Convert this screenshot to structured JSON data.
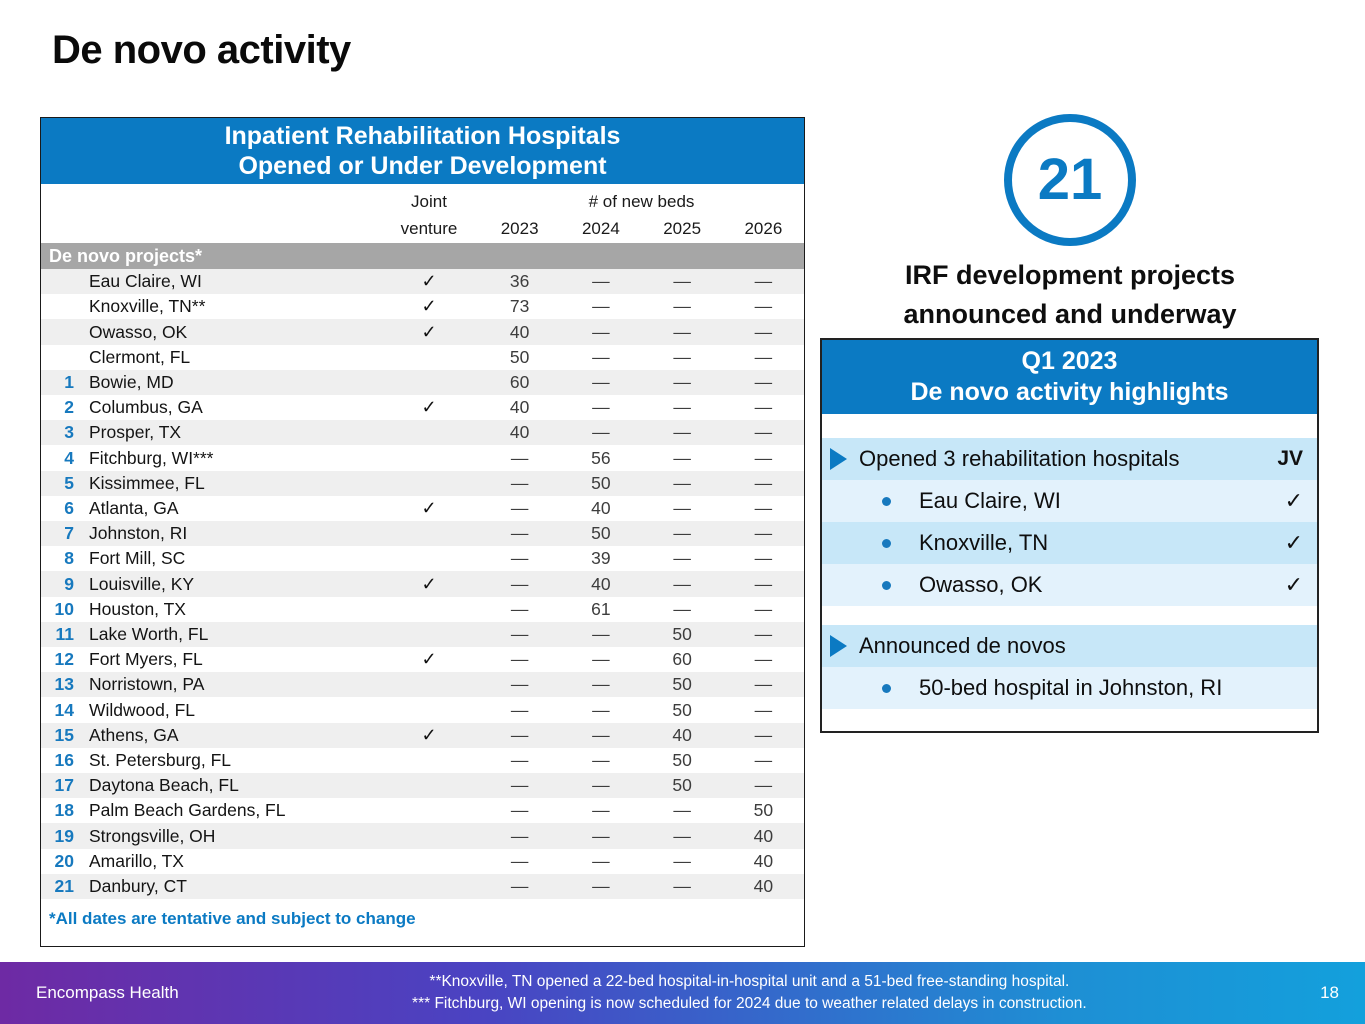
{
  "slide": {
    "title": "De novo activity"
  },
  "colors": {
    "header_blue": "#0b7ac3",
    "number_blue": "#1779be",
    "row_stripe_gray": "#efefef",
    "section_gray": "#a6a6a6",
    "highlight_blue_dark": "#c7e7f8",
    "highlight_blue_light": "#e3f2fc",
    "footer_gradient_left_purple": "#6e2aa4",
    "footer_gradient_right_cyan": "#13a0dc"
  },
  "glyphs": {
    "check": "✓",
    "dash": "—"
  },
  "table": {
    "title_line1": "Inpatient Rehabilitation Hospitals",
    "title_line2": "Opened or Under Development",
    "col_headers": {
      "joint_line1": "Joint",
      "joint_line2": "venture",
      "beds_group": "# of new beds",
      "years": [
        "2023",
        "2024",
        "2025",
        "2026"
      ]
    },
    "section_label": "De novo projects*",
    "rows": [
      {
        "num": "",
        "city": "Eau Claire, WI",
        "jv": true,
        "beds": [
          "36",
          "—",
          "—",
          "—"
        ]
      },
      {
        "num": "",
        "city": "Knoxville, TN**",
        "jv": true,
        "beds": [
          "73",
          "—",
          "—",
          "—"
        ]
      },
      {
        "num": "",
        "city": "Owasso, OK",
        "jv": true,
        "beds": [
          "40",
          "—",
          "—",
          "—"
        ]
      },
      {
        "num": "",
        "city": "Clermont, FL",
        "jv": false,
        "beds": [
          "50",
          "—",
          "—",
          "—"
        ]
      },
      {
        "num": "1",
        "city": "Bowie, MD",
        "jv": false,
        "beds": [
          "60",
          "—",
          "—",
          "—"
        ]
      },
      {
        "num": "2",
        "city": "Columbus, GA",
        "jv": true,
        "beds": [
          "40",
          "—",
          "—",
          "—"
        ]
      },
      {
        "num": "3",
        "city": "Prosper, TX",
        "jv": false,
        "beds": [
          "40",
          "—",
          "—",
          "—"
        ]
      },
      {
        "num": "4",
        "city": "Fitchburg, WI***",
        "jv": false,
        "beds": [
          "—",
          "56",
          "—",
          "—"
        ]
      },
      {
        "num": "5",
        "city": "Kissimmee, FL",
        "jv": false,
        "beds": [
          "—",
          "50",
          "—",
          "—"
        ]
      },
      {
        "num": "6",
        "city": "Atlanta, GA",
        "jv": true,
        "beds": [
          "—",
          "40",
          "—",
          "—"
        ]
      },
      {
        "num": "7",
        "city": "Johnston, RI",
        "jv": false,
        "beds": [
          "—",
          "50",
          "—",
          "—"
        ]
      },
      {
        "num": "8",
        "city": "Fort Mill, SC",
        "jv": false,
        "beds": [
          "—",
          "39",
          "—",
          "—"
        ]
      },
      {
        "num": "9",
        "city": "Louisville, KY",
        "jv": true,
        "beds": [
          "—",
          "40",
          "—",
          "—"
        ]
      },
      {
        "num": "10",
        "city": "Houston, TX",
        "jv": false,
        "beds": [
          "—",
          "61",
          "—",
          "—"
        ]
      },
      {
        "num": "11",
        "city": "Lake Worth, FL",
        "jv": false,
        "beds": [
          "—",
          "—",
          "50",
          "—"
        ]
      },
      {
        "num": "12",
        "city": "Fort Myers, FL",
        "jv": true,
        "beds": [
          "—",
          "—",
          "60",
          "—"
        ]
      },
      {
        "num": "13",
        "city": "Norristown, PA",
        "jv": false,
        "beds": [
          "—",
          "—",
          "50",
          "—"
        ]
      },
      {
        "num": "14",
        "city": "Wildwood, FL",
        "jv": false,
        "beds": [
          "—",
          "—",
          "50",
          "—"
        ]
      },
      {
        "num": "15",
        "city": "Athens, GA",
        "jv": true,
        "beds": [
          "—",
          "—",
          "40",
          "—"
        ]
      },
      {
        "num": "16",
        "city": "St. Petersburg, FL",
        "jv": false,
        "beds": [
          "—",
          "—",
          "50",
          "—"
        ]
      },
      {
        "num": "17",
        "city": "Daytona Beach, FL",
        "jv": false,
        "beds": [
          "—",
          "—",
          "50",
          "—"
        ]
      },
      {
        "num": "18",
        "city": "Palm Beach Gardens, FL",
        "jv": false,
        "beds": [
          "—",
          "—",
          "—",
          "50"
        ]
      },
      {
        "num": "19",
        "city": "Strongsville, OH",
        "jv": false,
        "beds": [
          "—",
          "—",
          "—",
          "40"
        ]
      },
      {
        "num": "20",
        "city": "Amarillo, TX",
        "jv": false,
        "beds": [
          "—",
          "—",
          "—",
          "40"
        ]
      },
      {
        "num": "21",
        "city": "Danbury, CT",
        "jv": false,
        "beds": [
          "—",
          "—",
          "—",
          "40"
        ]
      }
    ],
    "footnote": "*All dates are tentative and subject to change"
  },
  "callout": {
    "count": "21",
    "caption_line1": "IRF development projects",
    "caption_line2": "announced and underway"
  },
  "highlights": {
    "header_line1": "Q1 2023",
    "header_line2": "De novo activity highlights",
    "items": [
      {
        "type": "spacer"
      },
      {
        "type": "section",
        "text": "Opened 3 rehabilitation hospitals",
        "right": "JV",
        "shade": "dark"
      },
      {
        "type": "bullet",
        "text": "Eau Claire, WI",
        "right": "✓",
        "shade": "light"
      },
      {
        "type": "bullet",
        "text": "Knoxville, TN",
        "right": "✓",
        "shade": "dark"
      },
      {
        "type": "bullet",
        "text": "Owasso, OK",
        "right": "✓",
        "shade": "light"
      },
      {
        "type": "spacer_small"
      },
      {
        "type": "section",
        "text": "Announced de novos",
        "right": "",
        "shade": "dark"
      },
      {
        "type": "bullet",
        "text": "50-bed hospital in Johnston, RI",
        "right": "",
        "shade": "light"
      }
    ]
  },
  "footer": {
    "brand": "Encompass Health",
    "note1": "**Knoxville, TN opened a 22-bed hospital-in-hospital unit and a 51-bed free-standing hospital.",
    "note2": "*** Fitchburg, WI opening is now scheduled for 2024 due to weather related delays in construction.",
    "page": "18"
  }
}
